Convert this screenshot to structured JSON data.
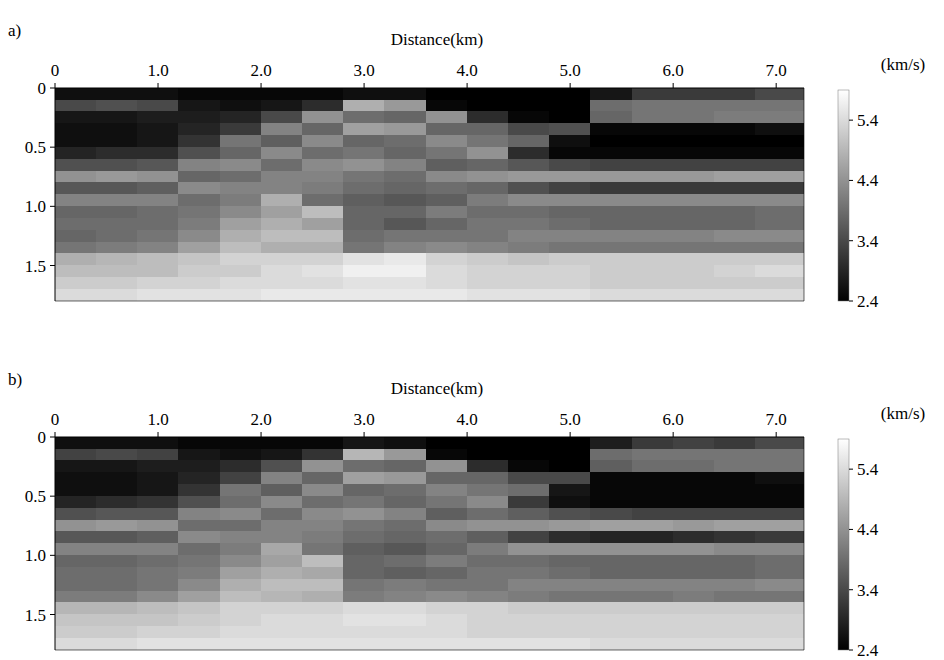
{
  "chart_data": [
    {
      "type": "heatmap",
      "panel_label": "a)",
      "x_label": "Distance(km)",
      "xlim": [
        0,
        7.27
      ],
      "ylim": [
        1.8,
        0
      ],
      "xticks": [
        0,
        {
          "value": 1,
          "label": "1.0"
        },
        {
          "value": 2,
          "label": "2.0"
        },
        {
          "value": 3,
          "label": "3.0"
        },
        {
          "value": 4,
          "label": "4.0"
        },
        {
          "value": 5,
          "label": "5.0"
        },
        {
          "value": 6,
          "label": "6.0"
        },
        {
          "value": 7,
          "label": "7.0"
        }
      ],
      "yticks": [
        0,
        0.5,
        {
          "value": 1,
          "label": "1.0"
        },
        1.5
      ],
      "colorbar": {
        "label": "(km/s)",
        "range": [
          2.4,
          5.9
        ],
        "ticks": [
          5.4,
          4.4,
          3.4,
          2.4
        ]
      },
      "x": [
        0.2,
        0.6,
        1.0,
        1.4,
        1.8,
        2.2,
        2.6,
        3.0,
        3.4,
        3.8,
        4.2,
        4.6,
        5.0,
        5.4,
        5.8,
        6.2,
        6.6,
        7.0
      ],
      "y": [
        0.05,
        0.15,
        0.25,
        0.35,
        0.45,
        0.55,
        0.65,
        0.75,
        0.85,
        0.95,
        1.05,
        1.15,
        1.25,
        1.35,
        1.45,
        1.55,
        1.65,
        1.75
      ],
      "z": [
        [
          2.6,
          2.6,
          2.6,
          2.5,
          2.5,
          2.5,
          2.5,
          2.6,
          2.6,
          2.4,
          2.4,
          2.4,
          2.4,
          2.7,
          3.2,
          3.2,
          3.2,
          3.4
        ],
        [
          3.4,
          3.5,
          3.4,
          2.7,
          2.6,
          2.7,
          3.0,
          4.8,
          4.5,
          2.5,
          2.4,
          2.4,
          2.4,
          3.9,
          4.0,
          4.0,
          4.0,
          4.0
        ],
        [
          2.7,
          2.7,
          2.8,
          2.8,
          2.9,
          3.4,
          4.4,
          3.9,
          3.8,
          4.4,
          3.0,
          2.5,
          2.4,
          3.8,
          4.0,
          4.0,
          4.1,
          4.1
        ],
        [
          2.6,
          2.6,
          2.7,
          2.9,
          3.2,
          4.2,
          3.8,
          4.6,
          4.5,
          3.8,
          3.8,
          3.4,
          3.5,
          2.5,
          2.5,
          2.5,
          2.5,
          2.6
        ],
        [
          2.6,
          2.6,
          2.7,
          3.1,
          4.0,
          3.7,
          4.3,
          3.8,
          3.9,
          4.3,
          4.0,
          3.8,
          2.6,
          2.4,
          2.4,
          2.4,
          2.4,
          2.4
        ],
        [
          2.9,
          3.0,
          3.0,
          3.5,
          3.8,
          4.3,
          3.9,
          4.0,
          3.8,
          4.0,
          4.4,
          3.0,
          2.5,
          2.5,
          2.5,
          2.5,
          2.5,
          2.5
        ],
        [
          3.5,
          3.5,
          3.6,
          4.2,
          4.3,
          3.9,
          4.3,
          4.4,
          4.2,
          3.7,
          3.8,
          3.6,
          3.4,
          3.3,
          3.3,
          3.3,
          3.3,
          3.3
        ],
        [
          4.4,
          4.5,
          4.4,
          3.8,
          3.9,
          4.2,
          4.2,
          4.0,
          3.9,
          4.3,
          4.4,
          4.5,
          4.5,
          4.5,
          4.5,
          4.5,
          4.6,
          4.6
        ],
        [
          3.6,
          3.6,
          3.7,
          4.3,
          4.2,
          4.2,
          4.1,
          3.9,
          3.8,
          3.9,
          3.8,
          3.5,
          3.3,
          3.2,
          3.2,
          3.2,
          3.2,
          3.2
        ],
        [
          4.2,
          4.2,
          4.2,
          3.9,
          4.1,
          4.8,
          3.9,
          3.7,
          3.6,
          3.7,
          4.1,
          4.3,
          4.3,
          4.3,
          4.3,
          4.3,
          4.3,
          4.3
        ],
        [
          3.8,
          3.8,
          3.9,
          4.0,
          4.3,
          4.6,
          5.0,
          3.8,
          3.8,
          4.1,
          3.9,
          3.9,
          3.8,
          3.8,
          3.8,
          3.8,
          3.8,
          3.9
        ],
        [
          3.9,
          3.9,
          3.9,
          4.1,
          4.6,
          4.8,
          4.6,
          3.8,
          3.6,
          3.8,
          4.0,
          4.0,
          3.9,
          3.8,
          3.8,
          3.8,
          3.8,
          3.9
        ],
        [
          3.8,
          3.9,
          4.0,
          4.3,
          4.8,
          5.0,
          5.0,
          3.9,
          4.0,
          4.0,
          4.0,
          4.2,
          4.2,
          4.2,
          4.2,
          4.2,
          4.3,
          4.3
        ],
        [
          4.0,
          4.1,
          4.2,
          4.6,
          5.0,
          4.8,
          4.8,
          4.0,
          4.2,
          4.3,
          4.2,
          4.1,
          4.0,
          4.0,
          4.0,
          4.0,
          4.0,
          4.0
        ],
        [
          4.8,
          4.9,
          5.0,
          5.1,
          5.3,
          5.3,
          5.3,
          5.5,
          5.6,
          5.3,
          5.2,
          5.1,
          5.2,
          5.2,
          5.2,
          5.2,
          5.2,
          5.2
        ],
        [
          5.0,
          5.0,
          5.0,
          5.2,
          5.2,
          5.4,
          5.5,
          5.7,
          5.7,
          5.4,
          5.3,
          5.3,
          5.3,
          5.2,
          5.2,
          5.2,
          5.3,
          5.4
        ],
        [
          5.2,
          5.2,
          5.3,
          5.3,
          5.4,
          5.4,
          5.4,
          5.5,
          5.5,
          5.4,
          5.3,
          5.3,
          5.3,
          5.2,
          5.2,
          5.2,
          5.2,
          5.2
        ],
        [
          5.4,
          5.4,
          5.5,
          5.5,
          5.5,
          5.6,
          5.6,
          5.6,
          5.6,
          5.6,
          5.5,
          5.5,
          5.5,
          5.4,
          5.4,
          5.4,
          5.4,
          5.4
        ]
      ]
    },
    {
      "type": "heatmap",
      "panel_label": "b)",
      "x_label": "Distance(km)",
      "xlim": [
        0,
        7.27
      ],
      "ylim": [
        1.8,
        0
      ],
      "xticks": [
        0,
        {
          "value": 1,
          "label": "1.0"
        },
        {
          "value": 2,
          "label": "2.0"
        },
        {
          "value": 3,
          "label": "3.0"
        },
        {
          "value": 4,
          "label": "4.0"
        },
        {
          "value": 5,
          "label": "5.0"
        },
        {
          "value": 6,
          "label": "6.0"
        },
        {
          "value": 7,
          "label": "7.0"
        }
      ],
      "yticks": [
        0,
        0.5,
        {
          "value": 1,
          "label": "1.0"
        },
        1.5
      ],
      "colorbar": {
        "label": "(km/s)",
        "range": [
          2.4,
          5.9
        ],
        "ticks": [
          5.4,
          4.4,
          3.4,
          2.4
        ]
      },
      "x": [
        0.2,
        0.6,
        1.0,
        1.4,
        1.8,
        2.2,
        2.6,
        3.0,
        3.4,
        3.8,
        4.2,
        4.6,
        5.0,
        5.4,
        5.8,
        6.2,
        6.6,
        7.0
      ],
      "y": [
        0.05,
        0.15,
        0.25,
        0.35,
        0.45,
        0.55,
        0.65,
        0.75,
        0.85,
        0.95,
        1.05,
        1.15,
        1.25,
        1.35,
        1.45,
        1.55,
        1.65,
        1.75
      ],
      "z": [
        [
          2.6,
          2.6,
          2.6,
          2.5,
          2.5,
          2.5,
          2.5,
          2.7,
          2.6,
          2.4,
          2.4,
          2.4,
          2.4,
          2.8,
          3.2,
          3.3,
          3.2,
          3.4
        ],
        [
          3.3,
          3.4,
          3.3,
          2.7,
          2.6,
          2.7,
          3.1,
          4.9,
          4.5,
          2.5,
          2.4,
          2.4,
          2.4,
          3.9,
          4.0,
          4.0,
          4.0,
          4.0
        ],
        [
          2.7,
          2.7,
          2.8,
          2.8,
          3.0,
          3.5,
          4.4,
          3.9,
          3.8,
          4.4,
          3.0,
          2.5,
          2.4,
          3.7,
          3.9,
          3.9,
          4.0,
          4.0
        ],
        [
          2.6,
          2.6,
          2.7,
          2.9,
          3.3,
          4.2,
          3.8,
          4.6,
          4.5,
          3.8,
          3.8,
          3.4,
          3.4,
          2.5,
          2.5,
          2.5,
          2.5,
          2.6
        ],
        [
          2.6,
          2.6,
          2.7,
          3.1,
          4.0,
          3.7,
          4.3,
          3.8,
          3.9,
          4.2,
          4.0,
          3.9,
          2.7,
          2.5,
          2.5,
          2.5,
          2.5,
          2.5
        ],
        [
          2.9,
          3.0,
          3.1,
          3.5,
          3.9,
          4.3,
          3.9,
          4.0,
          3.8,
          4.0,
          4.3,
          3.2,
          2.6,
          2.5,
          2.5,
          2.5,
          2.5,
          2.5
        ],
        [
          3.5,
          3.6,
          3.6,
          4.2,
          4.3,
          3.9,
          4.3,
          4.4,
          4.2,
          3.7,
          3.9,
          3.7,
          3.5,
          3.4,
          3.3,
          3.3,
          3.3,
          3.3
        ],
        [
          4.4,
          4.5,
          4.4,
          3.9,
          3.9,
          4.2,
          4.2,
          4.0,
          3.9,
          4.3,
          4.4,
          4.4,
          4.5,
          4.6,
          4.6,
          4.5,
          4.6,
          4.6
        ],
        [
          3.6,
          3.6,
          3.7,
          4.3,
          4.2,
          4.2,
          4.1,
          3.9,
          3.8,
          3.9,
          3.7,
          3.3,
          3.0,
          2.9,
          2.9,
          3.0,
          3.1,
          3.2
        ],
        [
          4.2,
          4.2,
          4.2,
          3.9,
          4.1,
          4.7,
          4.0,
          3.7,
          3.6,
          3.8,
          4.1,
          4.4,
          4.4,
          4.4,
          4.4,
          4.4,
          4.3,
          4.3
        ],
        [
          3.8,
          3.8,
          3.9,
          4.0,
          4.3,
          4.6,
          5.0,
          3.8,
          3.9,
          4.1,
          3.9,
          3.9,
          3.8,
          3.8,
          3.8,
          3.8,
          3.8,
          3.9
        ],
        [
          3.9,
          3.9,
          4.0,
          4.1,
          4.6,
          4.8,
          4.7,
          3.8,
          3.7,
          3.8,
          4.0,
          4.0,
          3.9,
          3.8,
          3.8,
          3.8,
          3.8,
          3.9
        ],
        [
          3.9,
          3.9,
          4.0,
          4.3,
          4.8,
          5.0,
          5.0,
          4.0,
          4.1,
          4.0,
          4.0,
          4.2,
          4.2,
          4.2,
          4.2,
          4.2,
          4.2,
          4.3
        ],
        [
          4.1,
          4.1,
          4.3,
          4.6,
          5.0,
          4.9,
          4.8,
          4.1,
          4.2,
          4.3,
          4.2,
          4.1,
          4.0,
          4.0,
          4.0,
          4.1,
          4.0,
          4.0
        ],
        [
          4.9,
          4.9,
          5.0,
          5.1,
          5.3,
          5.3,
          5.3,
          5.4,
          5.4,
          5.3,
          5.3,
          5.2,
          5.2,
          5.2,
          5.2,
          5.2,
          5.2,
          5.2
        ],
        [
          5.1,
          5.1,
          5.1,
          5.2,
          5.3,
          5.4,
          5.4,
          5.5,
          5.5,
          5.4,
          5.3,
          5.3,
          5.3,
          5.3,
          5.3,
          5.3,
          5.3,
          5.3
        ],
        [
          5.2,
          5.2,
          5.3,
          5.3,
          5.4,
          5.4,
          5.4,
          5.4,
          5.4,
          5.4,
          5.3,
          5.3,
          5.3,
          5.3,
          5.3,
          5.3,
          5.3,
          5.3
        ],
        [
          5.4,
          5.4,
          5.5,
          5.5,
          5.5,
          5.5,
          5.5,
          5.5,
          5.5,
          5.5,
          5.5,
          5.5,
          5.5,
          5.4,
          5.4,
          5.4,
          5.4,
          5.4
        ]
      ]
    }
  ]
}
